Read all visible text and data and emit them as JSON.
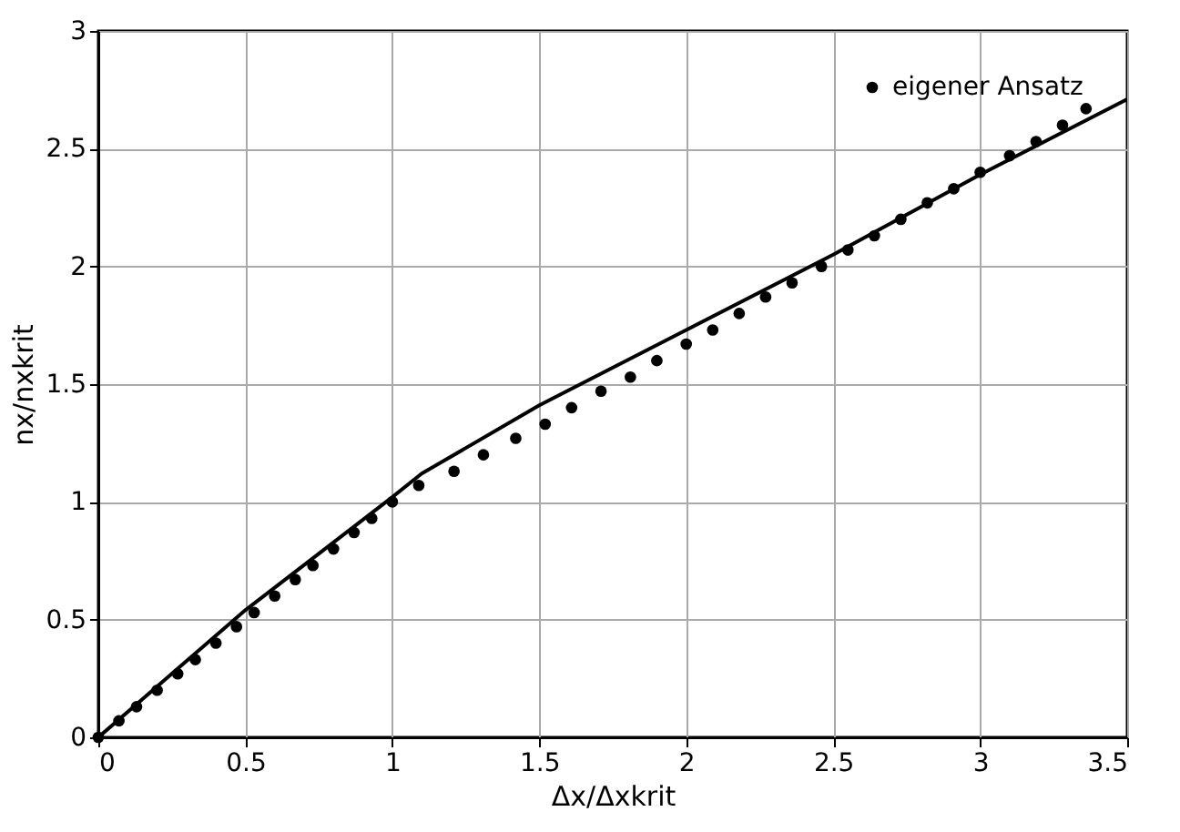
{
  "chart_data": {
    "type": "line",
    "xlabel": "Δx/Δxkrit",
    "ylabel": "nx/nxkrit",
    "xlim": [
      0,
      3.5
    ],
    "xticks": [
      0,
      0.5,
      1,
      1.5,
      2,
      2.5,
      3,
      3.5
    ],
    "ylim": [
      0,
      3
    ],
    "yticks": [
      0,
      0.5,
      1,
      1.5,
      2,
      2.5,
      3
    ],
    "grid": true,
    "legend": "top right",
    "series": [
      {
        "color": "#000000",
        "line_style": "solid",
        "x": [
          0,
          0.5,
          1,
          1.1,
          1.5,
          2,
          2.5,
          3,
          3.5
        ],
        "values": [
          0,
          0.54,
          1.02,
          1.12,
          1.41,
          1.73,
          2.05,
          2.39,
          2.71
        ]
      },
      {
        "type": "scatter",
        "name": "eigener Ansatz",
        "color": "#000000",
        "marker": "circle",
        "x": [
          0,
          0.07,
          0.13,
          0.2,
          0.27,
          0.33,
          0.4,
          0.47,
          0.53,
          0.6,
          0.67,
          0.73,
          0.8,
          0.87,
          0.93,
          1.0,
          1.09,
          1.21,
          1.31,
          1.42,
          1.52,
          1.61,
          1.71,
          1.81,
          1.9,
          2.0,
          2.09,
          2.18,
          2.27,
          2.36,
          2.46,
          2.55,
          2.64,
          2.73,
          2.82,
          2.91,
          3.0,
          3.1,
          3.19,
          3.28,
          3.36
        ],
        "values": [
          0,
          0.07,
          0.13,
          0.2,
          0.27,
          0.33,
          0.4,
          0.47,
          0.53,
          0.6,
          0.67,
          0.73,
          0.8,
          0.87,
          0.93,
          1.0,
          1.07,
          1.13,
          1.2,
          1.27,
          1.33,
          1.4,
          1.47,
          1.53,
          1.6,
          1.67,
          1.73,
          1.8,
          1.87,
          1.93,
          2.0,
          2.07,
          2.13,
          2.2,
          2.27,
          2.33,
          2.4,
          2.47,
          2.53,
          2.6,
          2.67
        ]
      }
    ]
  }
}
